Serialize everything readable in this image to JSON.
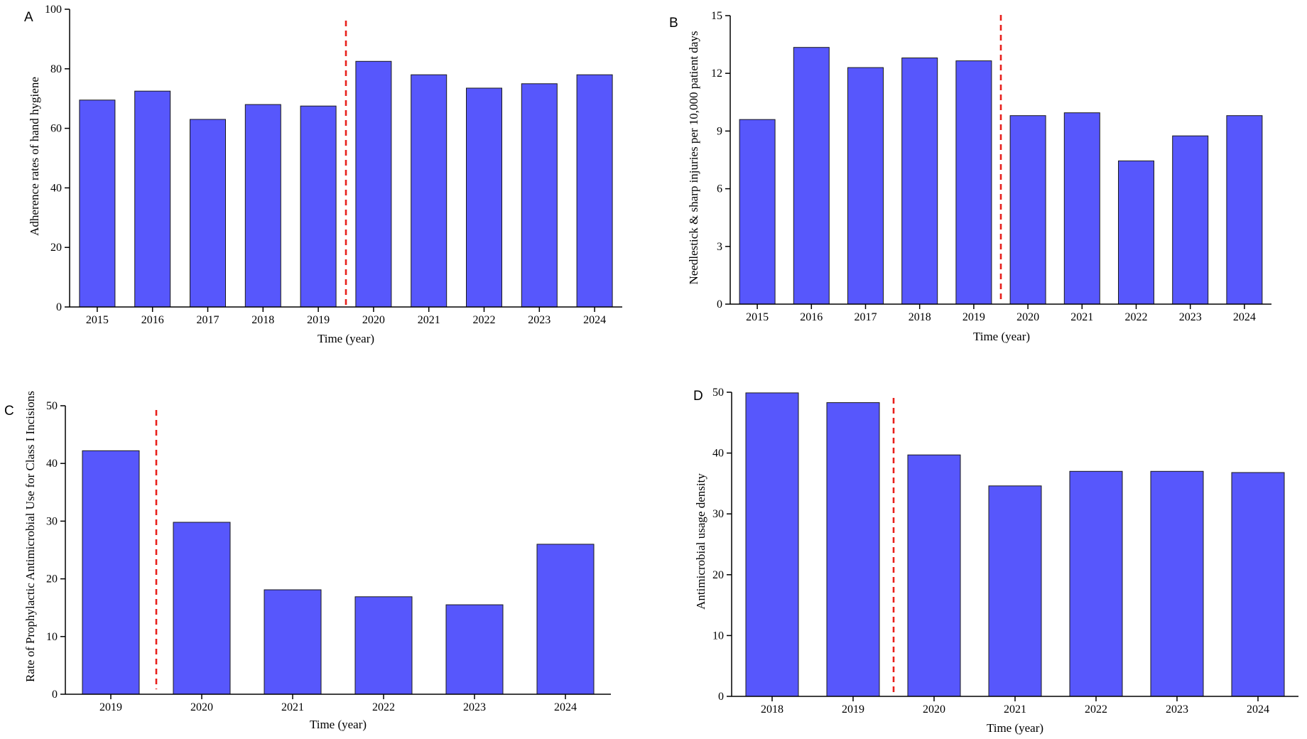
{
  "colors": {
    "bar": "#5757fc",
    "divider": "#e8201c"
  },
  "chart_data": [
    {
      "panel": "A",
      "type": "bar",
      "categories": [
        "2015",
        "2016",
        "2017",
        "2018",
        "2019",
        "2020",
        "2021",
        "2022",
        "2023",
        "2024"
      ],
      "values": [
        69.5,
        72.5,
        63,
        68,
        67.5,
        82.5,
        78,
        73.5,
        75,
        78
      ],
      "xlabel": "Time (year)",
      "ylabel": "Adherence rates of hand hygiene",
      "ylim": [
        0,
        100
      ],
      "yticks": [
        0,
        20,
        40,
        60,
        80,
        100
      ],
      "divider_after": "2019"
    },
    {
      "panel": "B",
      "type": "bar",
      "categories": [
        "2015",
        "2016",
        "2017",
        "2018",
        "2019",
        "2020",
        "2021",
        "2022",
        "2023",
        "2024"
      ],
      "values": [
        9.6,
        13.35,
        12.3,
        12.8,
        12.65,
        9.8,
        9.95,
        7.45,
        8.75,
        9.8
      ],
      "xlabel": "Time (year)",
      "ylabel": "Needlestick & sharp injuries per 10,000 patient days",
      "ylim": [
        0,
        15
      ],
      "yticks": [
        0,
        3,
        6,
        9,
        12,
        15
      ],
      "divider_after": "2019"
    },
    {
      "panel": "C",
      "type": "bar",
      "categories": [
        "2019",
        "2020",
        "2021",
        "2022",
        "2023",
        "2024"
      ],
      "values": [
        42.2,
        29.8,
        18.1,
        16.9,
        15.5,
        26
      ],
      "xlabel": "Time (year)",
      "ylabel": "Rate of Prophylactic Antimicrobial Use for Class I Incisions",
      "ylim": [
        0,
        50
      ],
      "yticks": [
        0,
        10,
        20,
        30,
        40,
        50
      ],
      "divider_after": "2019"
    },
    {
      "panel": "D",
      "type": "bar",
      "categories": [
        "2018",
        "2019",
        "2020",
        "2021",
        "2022",
        "2023",
        "2024"
      ],
      "values": [
        49.9,
        48.3,
        39.7,
        34.6,
        37,
        37,
        36.8
      ],
      "xlabel": "Time (year)",
      "ylabel": "Antimicrobial usage density",
      "ylim": [
        0,
        50
      ],
      "yticks": [
        0,
        10,
        20,
        30,
        40,
        50
      ],
      "divider_after": "2019"
    }
  ]
}
